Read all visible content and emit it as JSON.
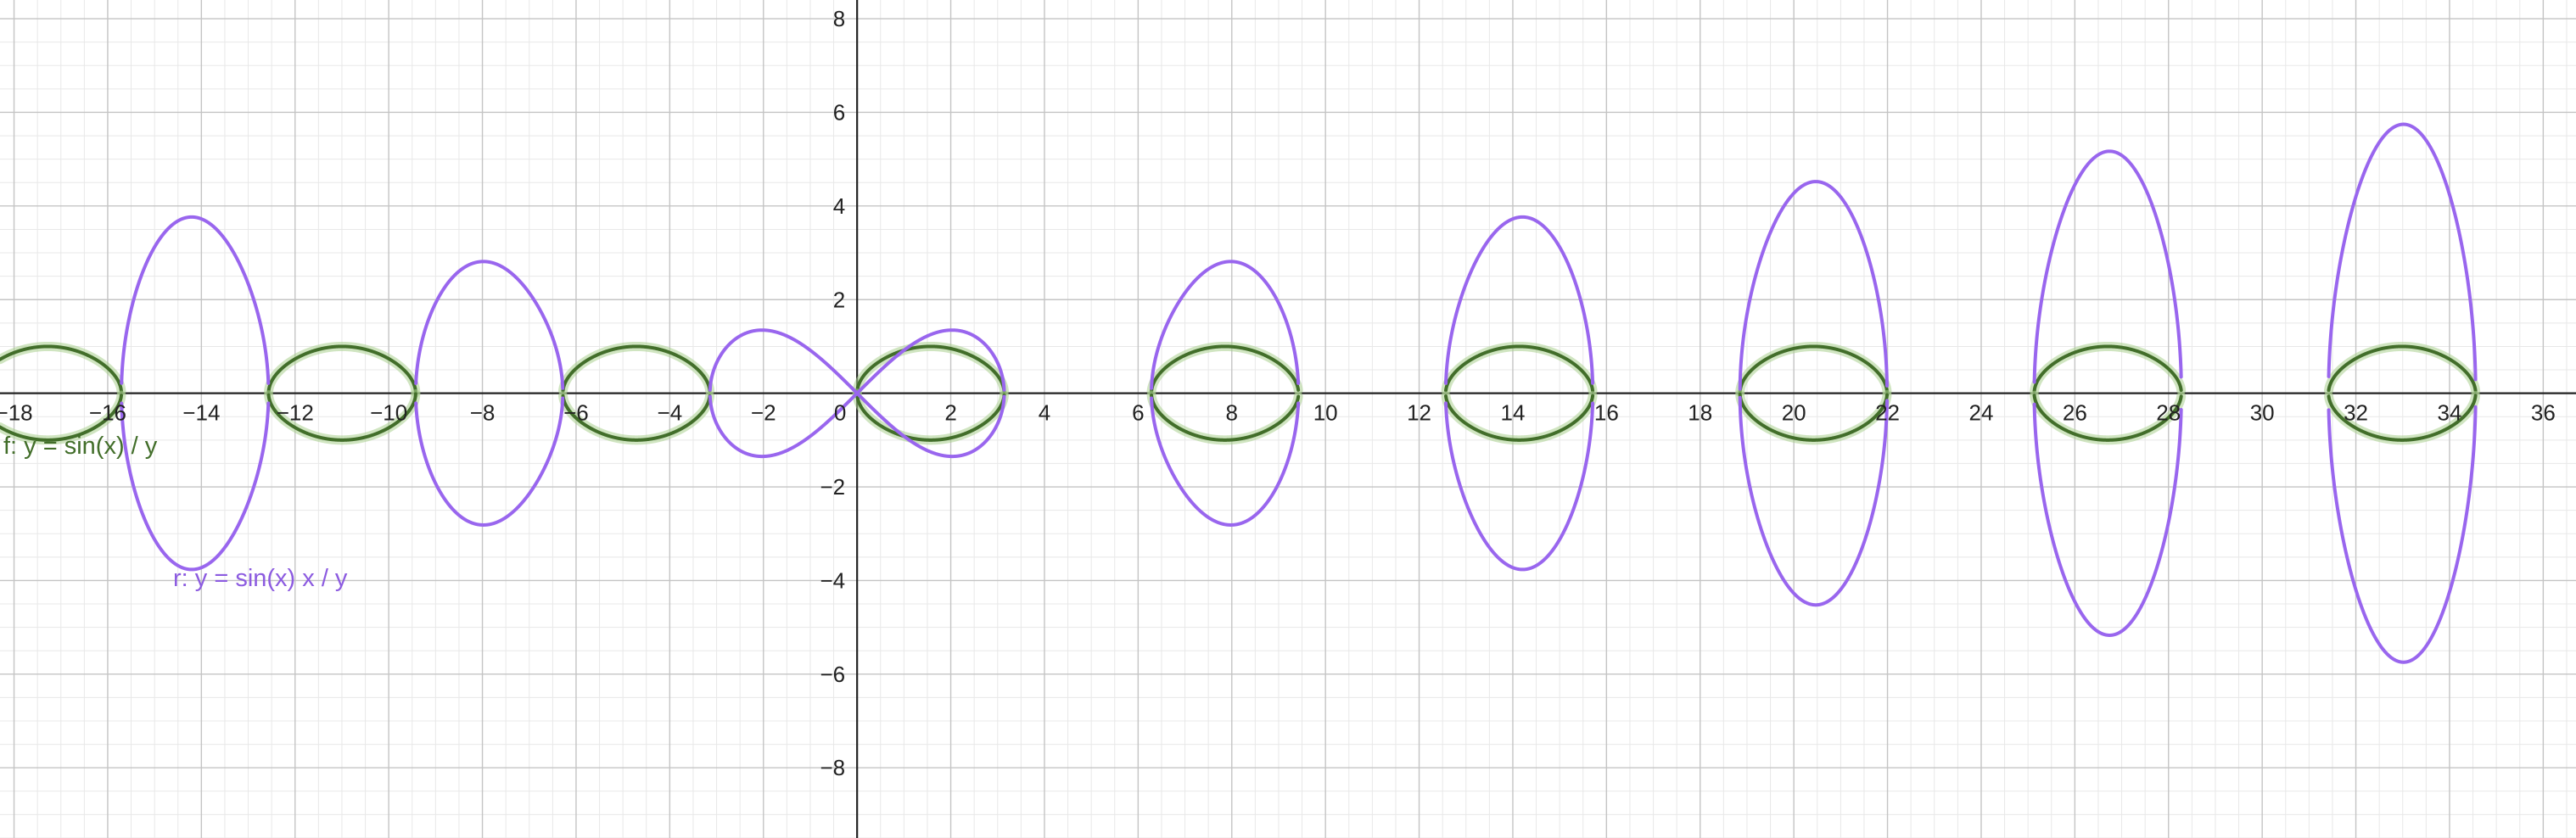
{
  "chart_data": {
    "type": "line",
    "title": "",
    "xlabel": "",
    "ylabel": "",
    "xlim": [
      -18.3,
      36.7
    ],
    "ylim": [
      -9.5,
      8.4
    ],
    "grid": true,
    "x_ticks": [
      -18,
      -16,
      -14,
      -12,
      -10,
      -8,
      -6,
      -4,
      -2,
      0,
      2,
      4,
      6,
      8,
      10,
      12,
      14,
      16,
      18,
      20,
      22,
      24,
      26,
      28,
      30,
      32,
      34,
      36
    ],
    "y_ticks": [
      -8,
      -6,
      -4,
      -2,
      2,
      4,
      6,
      8
    ],
    "series": [
      {
        "name": "f: y = sin(x) / y",
        "color": "#426e2a",
        "halo_color": "#a9d08e",
        "curve": "y^2 = sin(x)",
        "x": [
          0,
          0.39,
          0.79,
          1.18,
          1.57,
          1.96,
          2.36,
          2.75,
          3.14
        ],
        "y_upper": [
          0,
          0.62,
          0.84,
          0.96,
          1.0,
          0.96,
          0.84,
          0.62,
          0
        ]
      },
      {
        "name": "r: y = sin(x) x / y",
        "color": "#9966ee",
        "curve": "y^2 = x sin(x)",
        "x": [
          -14.14,
          -7.98,
          -2.03,
          2.03,
          7.98,
          14.14,
          20.42,
          26.7,
          32.99
        ],
        "y_upper": [
          3.76,
          2.82,
          1.34,
          1.34,
          2.82,
          3.76,
          4.52,
          5.17,
          5.74
        ]
      }
    ]
  }
}
